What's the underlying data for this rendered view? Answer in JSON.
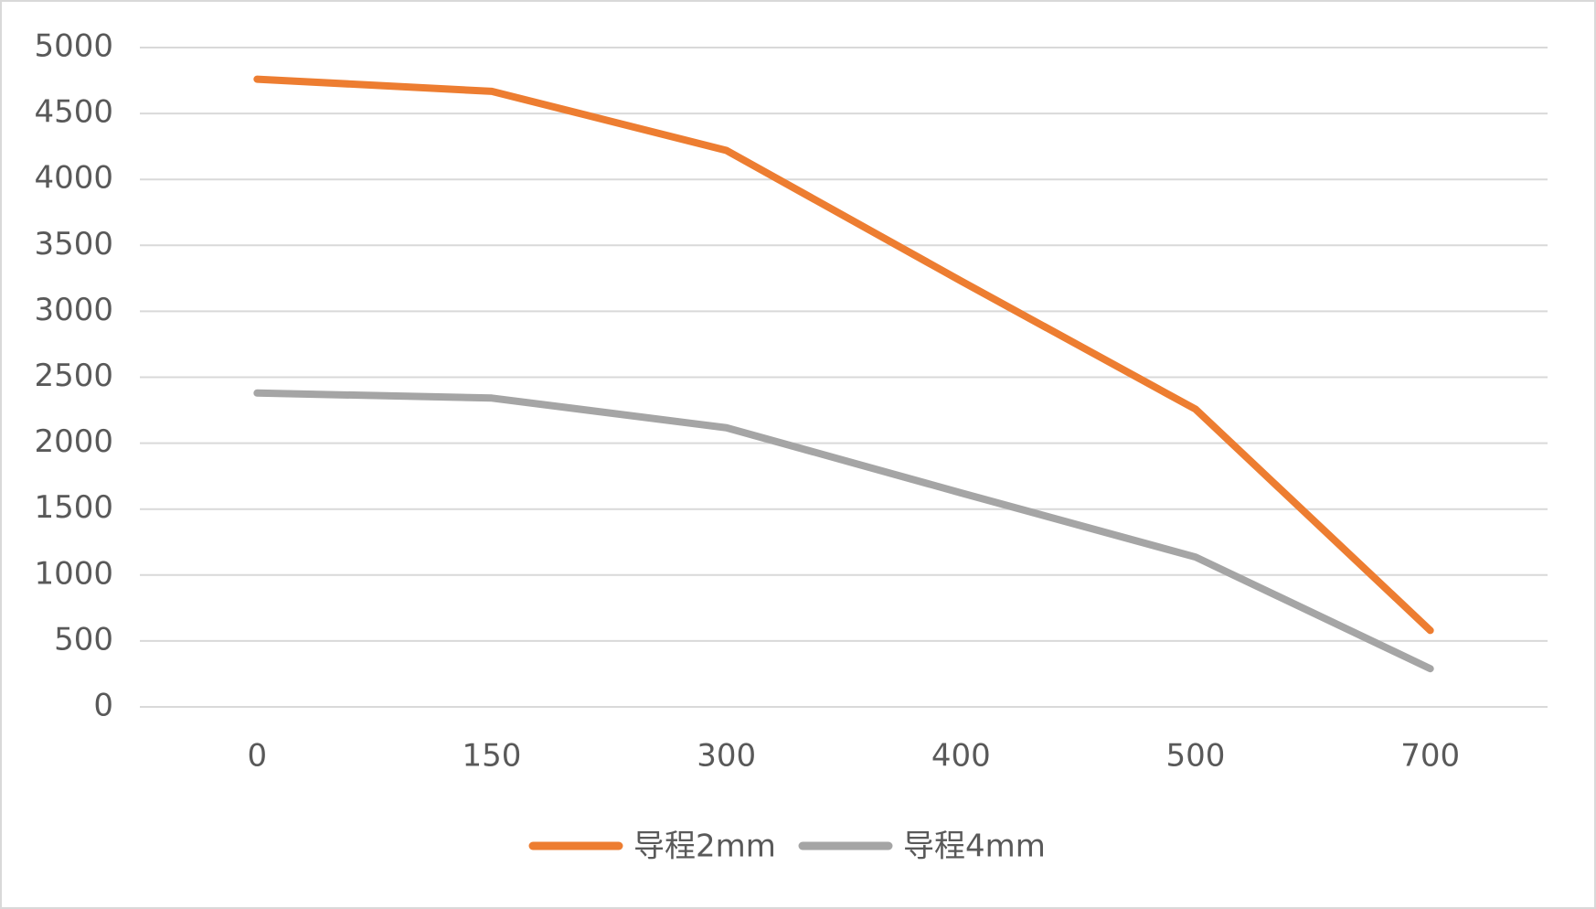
{
  "chart_data": {
    "type": "line",
    "categories": [
      "0",
      "150",
      "300",
      "400",
      "500",
      "700"
    ],
    "series": [
      {
        "name": "导程2mm",
        "color": "#ed7d31",
        "values": [
          4760,
          4668,
          4220,
          3230,
          2257,
          580
        ]
      },
      {
        "name": "导程4mm",
        "color": "#a5a5a5",
        "values": [
          2380,
          2342,
          2117,
          1623,
          1136,
          290
        ]
      }
    ],
    "ylim": [
      0,
      5000
    ],
    "yticks": [
      0,
      500,
      1000,
      1500,
      2000,
      2500,
      3000,
      3500,
      4000,
      4500,
      5000
    ],
    "grid": true,
    "legend": "bottom"
  }
}
